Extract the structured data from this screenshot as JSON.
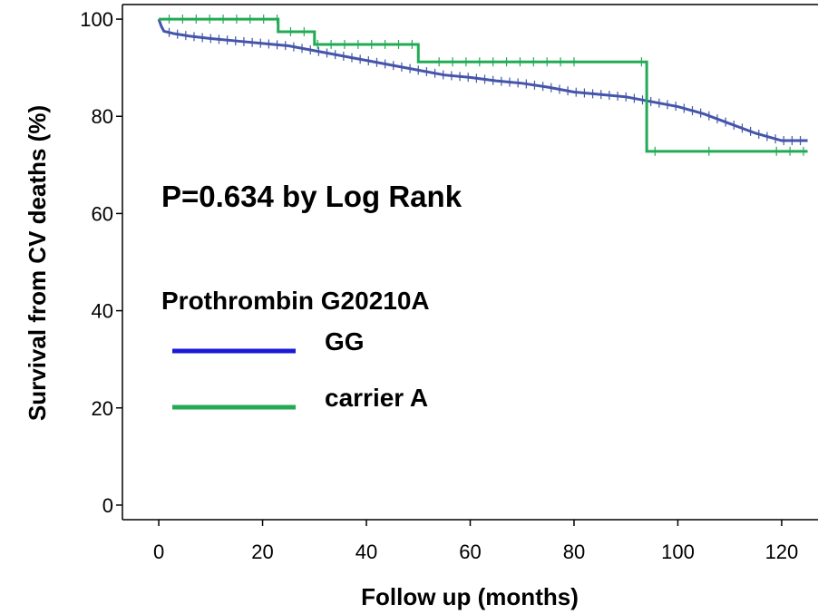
{
  "chart_data": {
    "type": "line",
    "xlabel": "Follow up (months)",
    "ylabel": "Survival from CV deaths (%)",
    "xlim": [
      -7,
      127
    ],
    "ylim": [
      -3,
      103
    ],
    "x_ticks": [
      0,
      20,
      40,
      60,
      80,
      100,
      120
    ],
    "y_ticks": [
      0,
      20,
      40,
      60,
      80,
      100
    ],
    "grid": false,
    "legend_position": "center-left",
    "annotation": "P=0.634 by Log Rank",
    "legend_title": "Prothrombin G20210A",
    "series": [
      {
        "name": "GG",
        "color": "#4455aa",
        "legend_color": "#1a1ad6",
        "censor_marks": true,
        "x": [
          0,
          0.5,
          1,
          3,
          6,
          10,
          15,
          20,
          25,
          30,
          35,
          40,
          45,
          50,
          55,
          60,
          65,
          70,
          75,
          80,
          85,
          90,
          95,
          100,
          105,
          110,
          115,
          120,
          125
        ],
        "y": [
          100,
          98.5,
          97.5,
          97,
          96.5,
          96,
          95.5,
          95,
          94.5,
          93.5,
          92.5,
          91.5,
          90.5,
          89.5,
          88.5,
          88,
          87.3,
          86.8,
          86,
          85,
          84.5,
          84,
          83,
          82,
          80.5,
          78.5,
          76.5,
          75,
          75
        ]
      },
      {
        "name": "carrier A",
        "color": "#22aa55",
        "legend_color": "#22aa55",
        "censor_marks": true,
        "step": true,
        "x": [
          0,
          23,
          30,
          50,
          94,
          125
        ],
        "y": [
          100,
          97.4,
          94.8,
          91.2,
          72.8,
          72.8
        ]
      }
    ]
  }
}
